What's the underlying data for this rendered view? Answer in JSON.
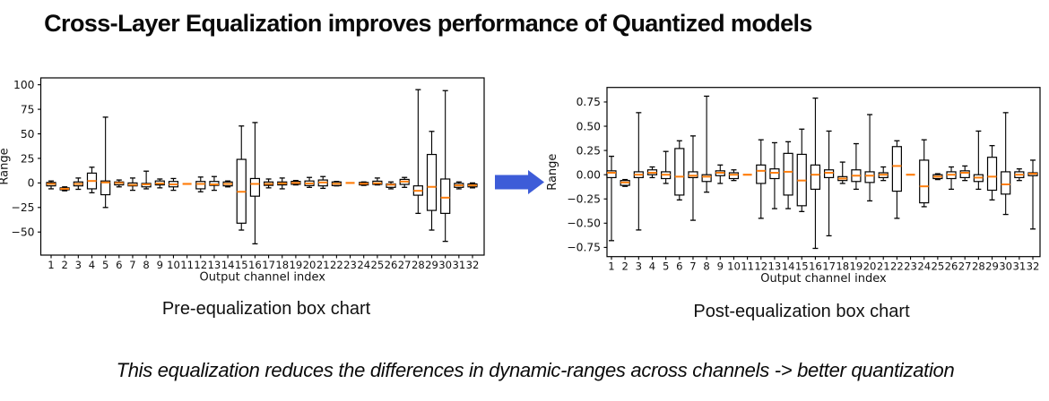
{
  "title": "Cross-Layer Equalization improves performance of Quantized models",
  "footer": "This equalization reduces the differences in dynamic-ranges across channels -> better quantization",
  "arrow": {
    "name": "right-block-arrow",
    "color": "#3d5cd8"
  },
  "chart_data": [
    {
      "type": "boxplot",
      "caption": "Pre-equalization box chart",
      "xlabel": "Output channel index",
      "ylabel": "Range",
      "ylim": [
        -73.5,
        107
      ],
      "yticks": [
        100,
        75,
        50,
        25,
        0,
        -25,
        -50
      ],
      "ytick_labels": [
        "100",
        "75",
        "50",
        "25",
        "0",
        "−25",
        "−50"
      ],
      "categories": [
        "1",
        "2",
        "3",
        "4",
        "5",
        "6",
        "7",
        "8",
        "9",
        "10",
        "11",
        "12",
        "13",
        "14",
        "15",
        "16",
        "17",
        "18",
        "19",
        "20",
        "21",
        "22",
        "23",
        "24",
        "25",
        "26",
        "27",
        "28",
        "29",
        "30",
        "31",
        "32"
      ],
      "box_format": "[whisker_low, q1, median, q3, whisker_high]",
      "line_color": "#000000",
      "median_color": "#ff7f0e",
      "boxes": [
        [
          -6,
          -3,
          -1,
          0.5,
          2
        ],
        [
          -8,
          -7,
          -6,
          -5,
          -4
        ],
        [
          -6.5,
          -3,
          -1,
          1,
          5
        ],
        [
          -10,
          -6,
          2,
          10,
          16
        ],
        [
          -25,
          -12,
          0.5,
          2,
          67
        ],
        [
          -4,
          -2,
          0,
          1,
          3
        ],
        [
          -7.5,
          -3,
          -2,
          0,
          5
        ],
        [
          -6,
          -4,
          -1.5,
          -0.5,
          12
        ],
        [
          -5,
          -2,
          -0.5,
          2,
          4
        ],
        [
          -7.5,
          -4,
          -1.5,
          1.5,
          4.5
        ],
        [
          -1,
          -1,
          -1,
          -1,
          -1
        ],
        [
          -9,
          -6,
          -1,
          1.5,
          6
        ],
        [
          -7.5,
          -2.5,
          -1.5,
          1.5,
          6.5
        ],
        [
          -4,
          -3,
          -1,
          1,
          2
        ],
        [
          -48,
          -41,
          -9,
          24,
          58
        ],
        [
          -62,
          -13.5,
          -1,
          4.5,
          61.5
        ],
        [
          -5,
          -2.5,
          -1,
          1,
          4
        ],
        [
          -6,
          -2,
          -0.5,
          1,
          5
        ],
        [
          -2,
          -1.4,
          0,
          1.6,
          2.5
        ],
        [
          -4.5,
          -2.7,
          -0.5,
          2,
          5.6
        ],
        [
          -5.5,
          -3,
          0.5,
          3,
          6.5
        ],
        [
          -3,
          -2.7,
          -0.8,
          1,
          1.5
        ],
        [
          0,
          0,
          0,
          0,
          0
        ],
        [
          -2.5,
          -2,
          -0.8,
          0.5,
          1
        ],
        [
          -2,
          -1.5,
          -0.3,
          1.8,
          5
        ],
        [
          -6,
          -4.5,
          -1.8,
          -1,
          1
        ],
        [
          -4.5,
          -1.5,
          1.4,
          3.6,
          5.6
        ],
        [
          -31,
          -12.5,
          -8,
          -3,
          95
        ],
        [
          -48,
          -28,
          -4,
          29,
          52.5
        ],
        [
          -59.5,
          -31,
          -15,
          4,
          94
        ],
        [
          -6,
          -4.5,
          -2.5,
          -0.5,
          1
        ],
        [
          -5,
          -4,
          -2.5,
          -1,
          0
        ]
      ]
    },
    {
      "type": "boxplot",
      "caption": "Post-equalization box chart",
      "xlabel": "Output channel index",
      "ylabel": "Range",
      "ylim": [
        -0.845,
        0.9
      ],
      "yticks": [
        0.75,
        0.5,
        0.25,
        0.0,
        -0.25,
        -0.5,
        -0.75
      ],
      "ytick_labels": [
        "0.75",
        "0.50",
        "0.25",
        "0.00",
        "−0.25",
        "−0.50",
        "−0.75"
      ],
      "categories": [
        "1",
        "2",
        "3",
        "4",
        "5",
        "6",
        "7",
        "8",
        "9",
        "10",
        "11",
        "12",
        "13",
        "14",
        "15",
        "16",
        "17",
        "18",
        "19",
        "20",
        "21",
        "22",
        "23",
        "24",
        "25",
        "26",
        "27",
        "28",
        "29",
        "30",
        "31",
        "32"
      ],
      "box_format": "[whisker_low, q1, median, q3, whisker_high]",
      "line_color": "#000000",
      "median_color": "#ff7f0e",
      "boxes": [
        [
          -0.68,
          -0.03,
          0.02,
          0.04,
          0.19
        ],
        [
          -0.12,
          -0.11,
          -0.08,
          -0.06,
          -0.05
        ],
        [
          -0.57,
          -0.03,
          0.0,
          0.03,
          0.64
        ],
        [
          -0.03,
          0.0,
          0.02,
          0.05,
          0.08
        ],
        [
          -0.09,
          -0.04,
          0.0,
          0.03,
          0.24
        ],
        [
          -0.26,
          -0.21,
          -0.02,
          0.27,
          0.35
        ],
        [
          -0.47,
          -0.03,
          -0.01,
          0.03,
          0.4
        ],
        [
          -0.18,
          -0.07,
          -0.02,
          0.0,
          0.81
        ],
        [
          -0.09,
          -0.01,
          0.02,
          0.04,
          0.1
        ],
        [
          -0.06,
          -0.04,
          0.0,
          0.02,
          0.05
        ],
        [
          0,
          0,
          0,
          0,
          0
        ],
        [
          -0.45,
          -0.09,
          0.04,
          0.1,
          0.36
        ],
        [
          -0.35,
          -0.04,
          0.02,
          0.06,
          0.33
        ],
        [
          -0.35,
          -0.21,
          0.03,
          0.22,
          0.34
        ],
        [
          -0.38,
          -0.32,
          -0.06,
          0.21,
          0.47
        ],
        [
          -0.76,
          -0.15,
          0.0,
          0.1,
          0.79
        ],
        [
          -0.63,
          -0.03,
          0.02,
          0.05,
          0.45
        ],
        [
          -0.09,
          -0.06,
          -0.04,
          -0.02,
          0.13
        ],
        [
          -0.15,
          -0.07,
          -0.01,
          0.05,
          0.32
        ],
        [
          -0.27,
          -0.08,
          -0.01,
          0.03,
          0.62
        ],
        [
          -0.06,
          -0.03,
          0.0,
          0.02,
          0.08
        ],
        [
          -0.45,
          -0.17,
          0.09,
          0.29,
          0.35
        ],
        [
          0,
          0,
          0,
          0,
          0
        ],
        [
          -0.33,
          -0.29,
          -0.12,
          0.15,
          0.36
        ],
        [
          -0.05,
          -0.04,
          -0.02,
          0.0,
          0.01
        ],
        [
          -0.15,
          -0.04,
          0.0,
          0.03,
          0.08
        ],
        [
          -0.06,
          -0.03,
          0.02,
          0.04,
          0.09
        ],
        [
          -0.15,
          -0.07,
          -0.03,
          0.0,
          0.45
        ],
        [
          -0.26,
          -0.16,
          -0.02,
          0.18,
          0.3
        ],
        [
          -0.41,
          -0.2,
          -0.1,
          0.03,
          0.64
        ],
        [
          -0.06,
          -0.03,
          0.0,
          0.03,
          0.06
        ],
        [
          -0.56,
          -0.01,
          0.01,
          0.02,
          0.15
        ]
      ]
    }
  ]
}
